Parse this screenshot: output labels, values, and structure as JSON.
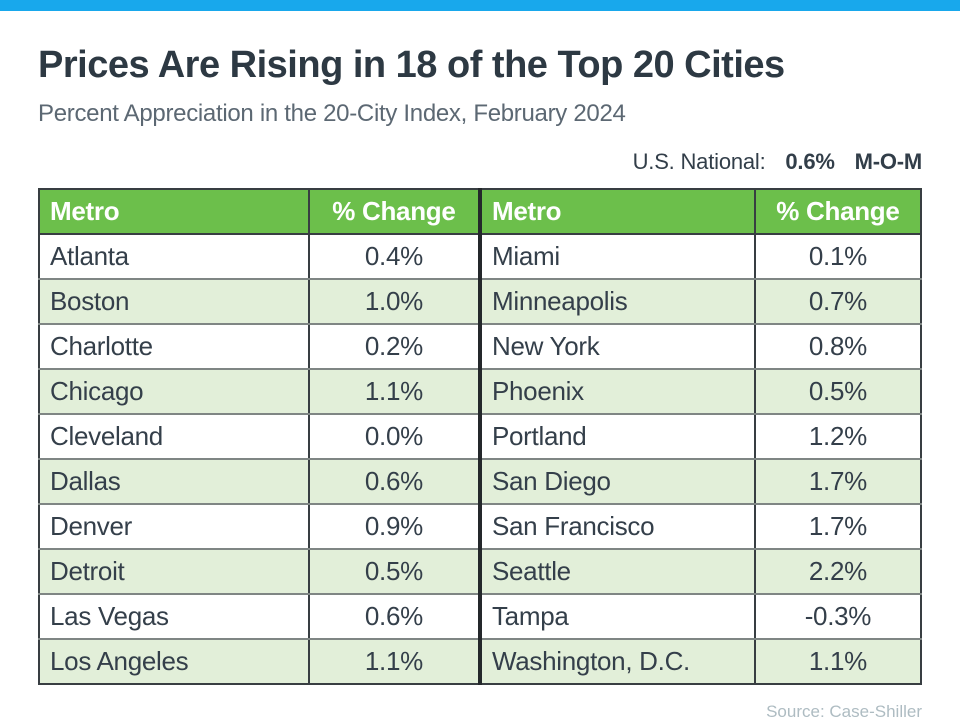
{
  "colors": {
    "topbar_blue": "#18a8ec",
    "header_green": "#6cbf4b",
    "row_alt_green": "#e2efd9",
    "title_text": "#2d3943",
    "subtitle_text": "#5c6873"
  },
  "header": {
    "title": "Prices Are Rising in 18 of the Top 20 Cities",
    "subtitle": "Percent Appreciation in the 20-City Index, February 2024"
  },
  "national": {
    "label": "U.S. National:",
    "value": "0.6%",
    "period": "M-O-M"
  },
  "table": {
    "columns": [
      "Metro",
      "% Change",
      "Metro",
      "% Change"
    ],
    "rows": [
      [
        "Atlanta",
        "0.4%",
        "Miami",
        "0.1%"
      ],
      [
        "Boston",
        "1.0%",
        "Minneapolis",
        "0.7%"
      ],
      [
        "Charlotte",
        "0.2%",
        "New York",
        "0.8%"
      ],
      [
        "Chicago",
        "1.1%",
        "Phoenix",
        "0.5%"
      ],
      [
        "Cleveland",
        "0.0%",
        "Portland",
        "1.2%"
      ],
      [
        "Dallas",
        "0.6%",
        "San Diego",
        "1.7%"
      ],
      [
        "Denver",
        "0.9%",
        "San Francisco",
        "1.7%"
      ],
      [
        "Detroit",
        "0.5%",
        "Seattle",
        "2.2%"
      ],
      [
        "Las Vegas",
        "0.6%",
        "Tampa",
        "-0.3%"
      ],
      [
        "Los Angeles",
        "1.1%",
        "Washington, D.C.",
        "1.1%"
      ]
    ]
  },
  "footer": {
    "source": "Source: Case-Shiller"
  },
  "chart_data": {
    "type": "table",
    "title": "Prices Are Rising in 18 of the Top 20 Cities",
    "subtitle": "Percent Appreciation in the 20-City Index, February 2024",
    "annotation": "U.S. National: 0.6% M-O-M",
    "columns": [
      "Metro",
      "% Change"
    ],
    "national_mom_pct": 0.6,
    "cities": [
      {
        "metro": "Atlanta",
        "pct_change": 0.4
      },
      {
        "metro": "Boston",
        "pct_change": 1.0
      },
      {
        "metro": "Charlotte",
        "pct_change": 0.2
      },
      {
        "metro": "Chicago",
        "pct_change": 1.1
      },
      {
        "metro": "Cleveland",
        "pct_change": 0.0
      },
      {
        "metro": "Dallas",
        "pct_change": 0.6
      },
      {
        "metro": "Denver",
        "pct_change": 0.9
      },
      {
        "metro": "Detroit",
        "pct_change": 0.5
      },
      {
        "metro": "Las Vegas",
        "pct_change": 0.6
      },
      {
        "metro": "Los Angeles",
        "pct_change": 1.1
      },
      {
        "metro": "Miami",
        "pct_change": 0.1
      },
      {
        "metro": "Minneapolis",
        "pct_change": 0.7
      },
      {
        "metro": "New York",
        "pct_change": 0.8
      },
      {
        "metro": "Phoenix",
        "pct_change": 0.5
      },
      {
        "metro": "Portland",
        "pct_change": 1.2
      },
      {
        "metro": "San Diego",
        "pct_change": 1.7
      },
      {
        "metro": "San Francisco",
        "pct_change": 1.7
      },
      {
        "metro": "Seattle",
        "pct_change": 2.2
      },
      {
        "metro": "Tampa",
        "pct_change": -0.3
      },
      {
        "metro": "Washington, D.C.",
        "pct_change": 1.1
      }
    ],
    "source": "Source: Case-Shiller",
    "rising_cities_count": 18,
    "total_cities": 20
  }
}
